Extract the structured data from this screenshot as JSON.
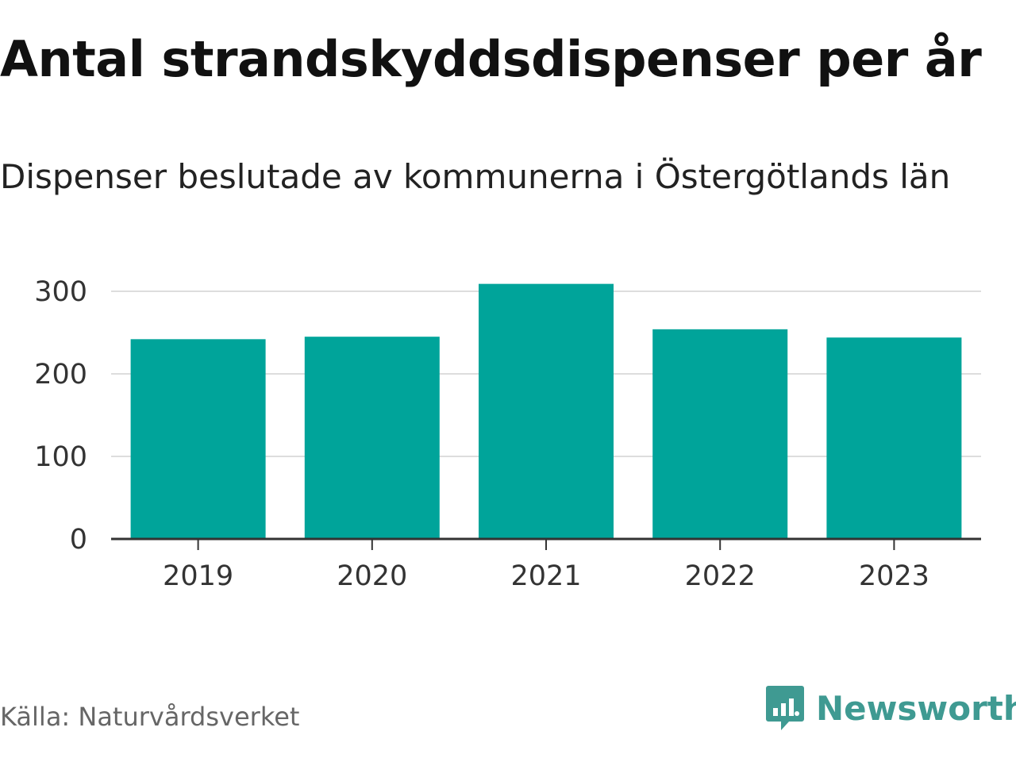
{
  "header": {
    "title": "Antal strandskyddsdispenser per år",
    "subtitle": "Dispenser beslutade av kommunerna i Östergötlands län"
  },
  "footer": {
    "source": "Källa: Naturvårdsverket",
    "brand": "Newsworthy",
    "brand_icon": "chart-bubble-icon"
  },
  "colors": {
    "bar": "#00a49a",
    "grid": "#dddddd",
    "axis": "#333333",
    "brand": "#3f9a92"
  },
  "chart_data": {
    "type": "bar",
    "title": "Antal strandskyddsdispenser per år",
    "subtitle": "Dispenser beslutade av kommunerna i Östergötlands län",
    "categories": [
      "2019",
      "2020",
      "2021",
      "2022",
      "2023"
    ],
    "values": [
      242,
      245,
      309,
      254,
      244
    ],
    "xlabel": "",
    "ylabel": "",
    "ylim": [
      0,
      300
    ],
    "yticks": [
      0,
      100,
      200,
      300
    ],
    "grid": true,
    "legend": "none"
  }
}
